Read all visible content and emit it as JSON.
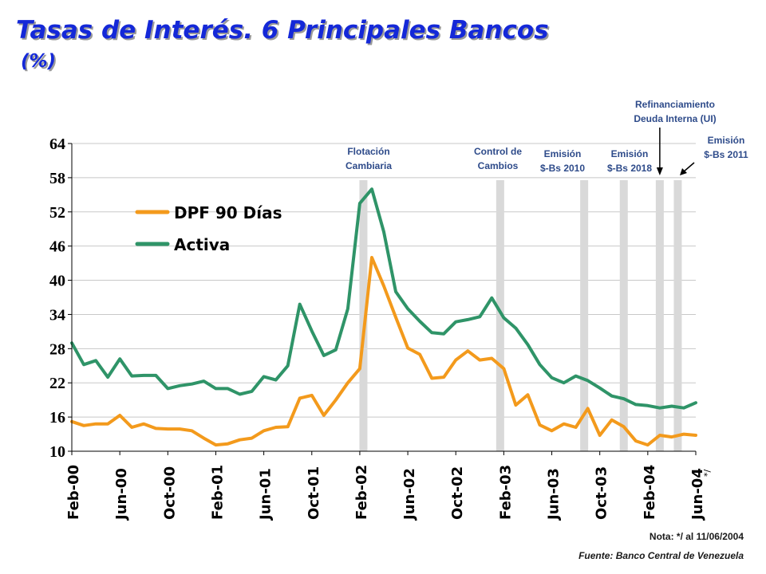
{
  "title": "Tasas de Interés. 6 Principales Bancos",
  "subtitle": "(%)",
  "note": "Nota: */ al 11/06/2004",
  "source": "Fuente: Banco Central de Venezuela",
  "colors": {
    "dpf": "#f39a1c",
    "activa": "#2f9468",
    "title": "#1428d8",
    "shade": "#d9d9d9"
  },
  "chart_data": {
    "type": "line",
    "title": "Tasas de Interés. 6 Principales Bancos",
    "subtitle": "(%)",
    "ylim": [
      10,
      64
    ],
    "yticks": [
      10,
      16,
      22,
      28,
      34,
      40,
      46,
      52,
      58,
      64
    ],
    "grid": true,
    "legend_position": "top-left",
    "x_tick_labels": [
      "Feb-00",
      "Jun-00",
      "Oct-00",
      "Feb-01",
      "Jun-01",
      "Oct-01",
      "Feb-02",
      "Jun-02",
      "Oct-02",
      "Feb-03",
      "Jun-03",
      "Oct-03",
      "Feb-04",
      "Jun-04"
    ],
    "x_tick_suffix": "*/",
    "series": [
      {
        "name": "DPF 90 Días",
        "color": "#f39a1c",
        "values": [
          15.2,
          14.5,
          14.8,
          14.8,
          16.3,
          14.2,
          14.8,
          14.0,
          13.9,
          13.9,
          13.6,
          12.3,
          11.1,
          11.3,
          12.0,
          12.3,
          13.6,
          14.2,
          14.3,
          19.3,
          19.8,
          16.3,
          19.0,
          22.0,
          24.5,
          44.0,
          39.0,
          33.5,
          28.1,
          27.0,
          22.8,
          23.0,
          26.0,
          27.6,
          26.0,
          26.3,
          24.5,
          18.1,
          19.9,
          14.6,
          13.6,
          14.8,
          14.2,
          17.5,
          12.8,
          15.5,
          14.3,
          11.8,
          11.1,
          12.8,
          12.5,
          13.0,
          12.8
        ]
      },
      {
        "name": "Activa",
        "color": "#2f9468",
        "values": [
          29.0,
          25.2,
          25.9,
          23.0,
          26.2,
          23.2,
          23.3,
          23.3,
          21.0,
          21.5,
          21.8,
          22.3,
          21.0,
          21.0,
          20.0,
          20.5,
          23.1,
          22.5,
          25.0,
          35.8,
          31.1,
          26.8,
          27.8,
          35.0,
          53.5,
          56.0,
          48.5,
          38.0,
          35.0,
          32.8,
          30.8,
          30.6,
          32.7,
          33.1,
          33.6,
          36.9,
          33.4,
          31.6,
          28.7,
          25.2,
          22.9,
          22.0,
          23.2,
          22.4,
          21.1,
          19.7,
          19.2,
          18.2,
          18.0,
          17.6,
          17.9,
          17.6,
          18.5
        ]
      }
    ],
    "events": [
      {
        "label_lines": [
          "Flotación",
          "Cambiaria"
        ],
        "at_index": 24.3
      },
      {
        "label_lines": [
          "Control de",
          "Cambios"
        ],
        "at_index": 35.7
      },
      {
        "label_lines": [
          "Emisión",
          "$-Bs  2010"
        ],
        "at_index": 42.7
      },
      {
        "label_lines": [
          "Emisión",
          "$-Bs  2018"
        ],
        "at_index": 46.0
      },
      {
        "label_lines": [
          "Refinanciamiento",
          "Deuda Interna (UI)"
        ],
        "at_index": 49.0,
        "arrow": "down"
      },
      {
        "label_lines": [
          "Emisión",
          "$-Bs  2011"
        ],
        "at_index": 50.5,
        "arrow": "diagonal"
      }
    ]
  }
}
